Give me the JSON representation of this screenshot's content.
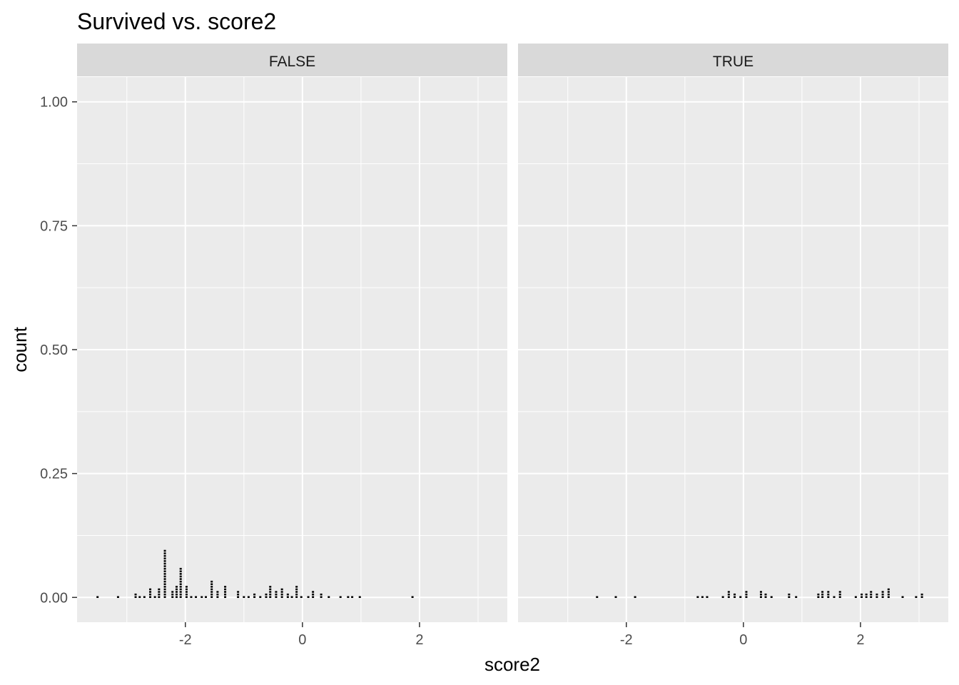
{
  "chart_data": {
    "type": "dotplot",
    "title": "Survived vs. score2",
    "xlabel": "score2",
    "ylabel": "count",
    "xlim": [
      -3.85,
      3.5
    ],
    "ylim": [
      -0.05,
      1.05
    ],
    "x_ticks": [
      -2,
      0,
      2
    ],
    "x_tick_labels": [
      "-2",
      "0",
      "2"
    ],
    "y_ticks": [
      0.0,
      0.25,
      0.5,
      0.75,
      1.0
    ],
    "y_tick_labels": [
      "0.00",
      "0.25",
      "0.50",
      "0.75",
      "1.00"
    ],
    "grid": true,
    "dot_color": "#000000",
    "panel_color": "#ebebeb",
    "strip_color": "#d9d9d9",
    "facets": [
      {
        "label": "FALSE",
        "x": [
          -3.5,
          -3.15,
          -2.85,
          -2.78,
          -2.7,
          -2.6,
          -2.52,
          -2.45,
          -2.35,
          -2.22,
          -2.15,
          -2.08,
          -1.98,
          -1.9,
          -1.82,
          -1.72,
          -1.65,
          -1.55,
          -1.45,
          -1.32,
          -1.1,
          -1.0,
          -0.92,
          -0.82,
          -0.72,
          -0.62,
          -0.55,
          -0.45,
          -0.35,
          -0.25,
          -0.18,
          -0.1,
          -0.02,
          0.1,
          0.18,
          0.32,
          0.45,
          0.65,
          0.78,
          0.85,
          0.98,
          1.88
        ],
        "counts": [
          1,
          1,
          2,
          1,
          1,
          4,
          1,
          4,
          19,
          3,
          5,
          12,
          5,
          1,
          1,
          1,
          1,
          7,
          3,
          5,
          3,
          1,
          1,
          2,
          1,
          2,
          5,
          3,
          4,
          2,
          1,
          5,
          1,
          1,
          3,
          2,
          1,
          1,
          1,
          1,
          1,
          1
        ]
      },
      {
        "label": "TRUE",
        "x": [
          -2.5,
          -2.18,
          -1.85,
          -0.78,
          -0.7,
          -0.62,
          -0.35,
          -0.25,
          -0.15,
          -0.05,
          0.05,
          0.3,
          0.38,
          0.48,
          0.78,
          0.9,
          1.28,
          1.35,
          1.45,
          1.55,
          1.65,
          1.92,
          2.02,
          2.1,
          2.18,
          2.28,
          2.38,
          2.48,
          2.72,
          2.95,
          3.05
        ],
        "counts": [
          1,
          1,
          1,
          1,
          1,
          1,
          1,
          3,
          2,
          1,
          3,
          3,
          2,
          1,
          2,
          1,
          2,
          3,
          3,
          1,
          3,
          1,
          2,
          2,
          3,
          2,
          3,
          4,
          1,
          1,
          2
        ]
      }
    ]
  }
}
